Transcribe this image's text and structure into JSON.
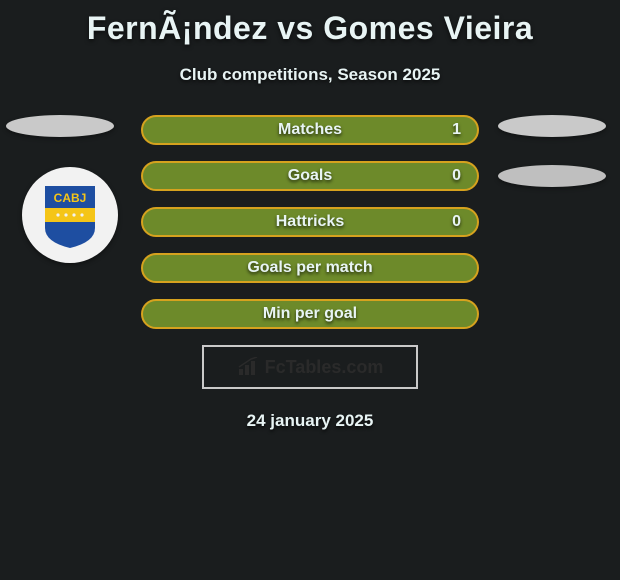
{
  "title": "FernÃ¡ndez vs Gomes Vieira",
  "subtitle": "Club competitions, Season 2025",
  "stats": [
    {
      "label": "Matches",
      "value": "1",
      "show_value": true
    },
    {
      "label": "Goals",
      "value": "0",
      "show_value": true
    },
    {
      "label": "Hattricks",
      "value": "0",
      "show_value": true
    },
    {
      "label": "Goals per match",
      "value": "",
      "show_value": false
    },
    {
      "label": "Min per goal",
      "value": "",
      "show_value": false
    }
  ],
  "pill_colors": {
    "border": "#d6a21e",
    "fill": "#6d8a2a"
  },
  "side_shapes": {
    "ellipse_color": "#c9c9c9",
    "crest": {
      "text_top": "CABJ",
      "bg": "#f2f2f2",
      "shield_blue": "#1e4ea1",
      "shield_yellow": "#f5c518"
    }
  },
  "footer": {
    "brand": "FcTables.com",
    "icon_name": "bar-chart-icon"
  },
  "date": "24 january 2025",
  "style": {
    "background_color": "#1a1d1e",
    "text_color": "#e8f4f4",
    "title_fontsize": 32,
    "subtitle_fontsize": 17,
    "pill_width": 338,
    "pill_height": 30,
    "pill_radius": 15,
    "label_fontsize": 16
  }
}
